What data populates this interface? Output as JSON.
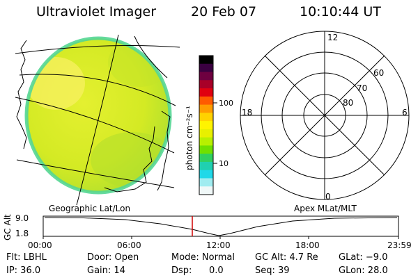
{
  "header": {
    "instrument": "Ultraviolet Imager",
    "date": "20 Feb 07",
    "time": "10:10:44 UT"
  },
  "colorbar": {
    "unit_label": "photon cm⁻²s⁻¹",
    "tick_labels": [
      "100",
      "10"
    ],
    "colors": [
      "#000000",
      "#3a0040",
      "#6e0040",
      "#a80028",
      "#e00010",
      "#ff5a00",
      "#ff9c00",
      "#ffd200",
      "#fff400",
      "#e8f000",
      "#b8f000",
      "#70e000",
      "#30d060",
      "#20d0b0",
      "#20d8e8",
      "#a0ecf0",
      "#f0f8f8"
    ]
  },
  "left_panel": {
    "caption": "Geographic Lat/Lon",
    "image_colors": {
      "base": "#d8ee22",
      "bright": "#f4f05a",
      "dim": "#a4e02c",
      "rim": "#54d694"
    }
  },
  "right_panel": {
    "caption": "Apex MLat/MLT",
    "mlt_labels": [
      "12",
      "18",
      "6",
      "0"
    ],
    "mlat_labels": [
      "60",
      "70",
      "80"
    ]
  },
  "altitude_plot": {
    "ylabel": "GC Alt",
    "yticks": [
      "9.0",
      "1.8"
    ],
    "xticks": [
      "00:00",
      "06:00",
      "12:00",
      "18:00",
      "23:59"
    ],
    "current_time_marker_color": "#d00000"
  },
  "info": {
    "filter": "Flt: LBHL",
    "door": "Door: Open",
    "mode": "Mode: Normal",
    "gc_alt": "GC Alt: 4.7 Re",
    "glat": "GLat: −9.0",
    "ip": "IP: 36.0",
    "gain": "Gain: 14",
    "dsp_label": "Dsp:",
    "dsp_value": "0.0",
    "seq": "Seq: 39",
    "glon": "GLon: 28.0"
  }
}
